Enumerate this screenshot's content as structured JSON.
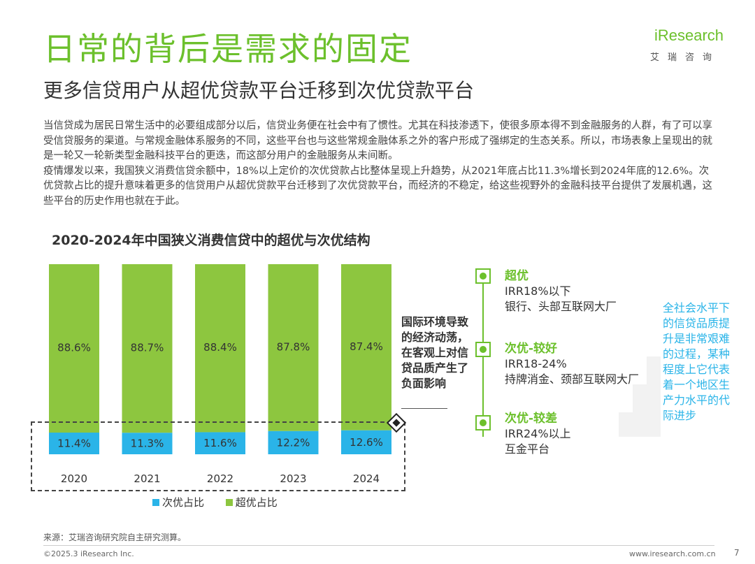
{
  "header": {
    "title": "日常的背后是需求的固定",
    "subtitle": "更多信贷用户从超优贷款平台迁移到次优贷款平台",
    "logo_word": "iResearch",
    "logo_cn": "艾瑞咨询"
  },
  "body": {
    "para1": "当信贷成为居民日常生活中的必要组成部分以后，信贷业务便在社会中有了惯性。尤其在科技渗透下，使很多原本得不到金融服务的人群，有了可以享受信贷服务的渠道。与常规金融体系服务的不同，这些平台也与这些常规金融体系之外的客户形成了强绑定的生态关系。所以，市场表象上呈现出的就是一轮又一轮新类型金融科技平台的更迭，而这部分用户的金融服务从未间断。",
    "para2": "疫情爆发以来，我国狭义消费信贷余额中，18%以上定价的次优贷款占比整体呈现上升趋势，从2021年底占比11.3%增长到2024年底的12.6%。次优贷款占比的提升意味着更多的信贷用户从超优贷款平台迁移到了次优贷款平台，而经济的不稳定，给这些视野外的金融科技平台提供了发展机遇，这些平台的历史作用也就在于此。"
  },
  "chart_data": {
    "type": "bar",
    "stacked": true,
    "title": "2020-2024年中国狭义消费信贷中的超优与次优结构",
    "categories": [
      "2020",
      "2021",
      "2022",
      "2023",
      "2024"
    ],
    "series": [
      {
        "name": "次优占比",
        "values": [
          11.4,
          11.3,
          11.6,
          12.2,
          12.6
        ],
        "labels": [
          "11.4%",
          "11.3%",
          "11.6%",
          "12.2%",
          "12.6%"
        ],
        "color": "#2ab4e8"
      },
      {
        "name": "超优占比",
        "values": [
          88.6,
          88.7,
          88.4,
          87.8,
          87.4
        ],
        "labels": [
          "88.6%",
          "88.7%",
          "88.4%",
          "87.8%",
          "87.4%"
        ],
        "color": "#8dc63f"
      }
    ],
    "ylim": [
      0,
      100
    ],
    "legend_position": "bottom"
  },
  "annotation": {
    "note": "国际环境导致的经济动荡，在客观上对信贷品质产生了负面影响"
  },
  "tiers": [
    {
      "heading": "超优",
      "lines": [
        "IRR18%以下",
        "银行、头部互联网大厂"
      ]
    },
    {
      "heading": "次优-较好",
      "lines": [
        "IRR18-24%",
        "持牌消金、颈部互联网大厂"
      ]
    },
    {
      "heading": "次优-较差",
      "lines": [
        "IRR24%以上",
        "互金平台"
      ]
    }
  ],
  "callout": "全社会水平下的信贷品质提升是非常艰难的过程，某种程度上它代表着一个地区生产力水平的代际进步",
  "footer": {
    "source": "来源：艾瑞咨询研究院自主研究测算。",
    "copyright": "©2025.3 iResearch Inc.",
    "website": "www.iresearch.com.cn",
    "page": "7"
  },
  "colors": {
    "brand_green": "#6cc02c",
    "bar_green": "#8dc63f",
    "bar_blue": "#2ab4e8"
  }
}
